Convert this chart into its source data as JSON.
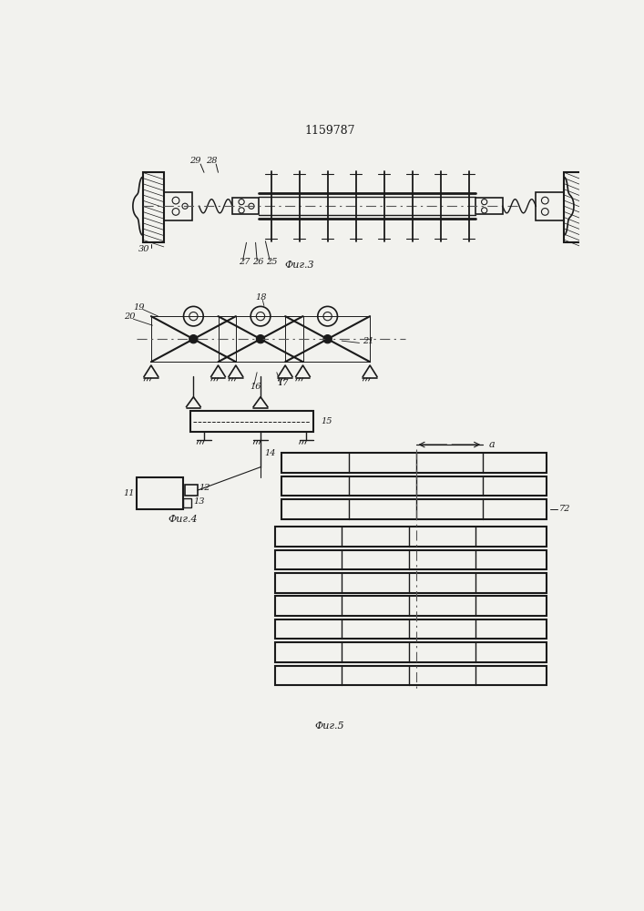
{
  "title": "1159787",
  "bg_color": "#f2f2ee",
  "line_color": "#1a1a1a",
  "fig3_caption": "Фиг.3",
  "fig4_caption": "Фиг.4",
  "fig5_caption": "Фиг.5"
}
